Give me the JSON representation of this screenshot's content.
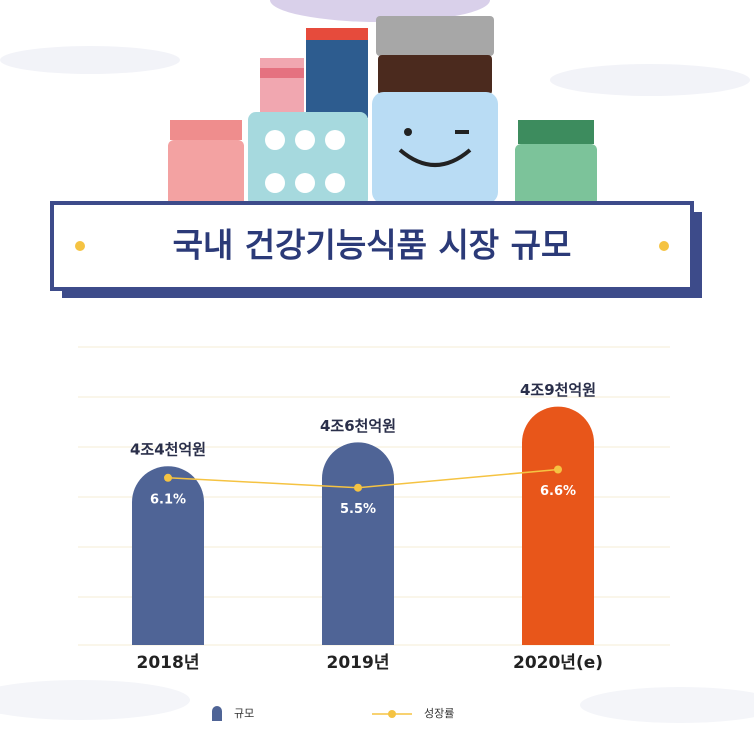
{
  "chart_data": {
    "type": "bar",
    "title": "국내 건강기능식품 시장 규모",
    "categories": [
      "2018년",
      "2019년",
      "2020년(e)"
    ],
    "ylim": [
      2.9,
      5.4
    ],
    "y2lim": [
      -4,
      14
    ],
    "legend": "bottom",
    "series": [
      {
        "name": "규모",
        "type": "bar",
        "color": "#4f6496",
        "colors": [
          "#4f6496",
          "#4f6496",
          "#e8561a"
        ],
        "values": [
          4.4,
          4.6,
          4.9
        ],
        "value_labels": [
          "4조4천억원",
          "4조6천억원",
          "4조9천억원"
        ]
      },
      {
        "name": "성장률",
        "type": "line",
        "axis": "y2",
        "color": "#f5c342",
        "values": [
          6.1,
          5.5,
          6.6
        ],
        "value_labels": [
          "6.1%",
          "5.5%",
          "6.6%"
        ]
      }
    ]
  }
}
